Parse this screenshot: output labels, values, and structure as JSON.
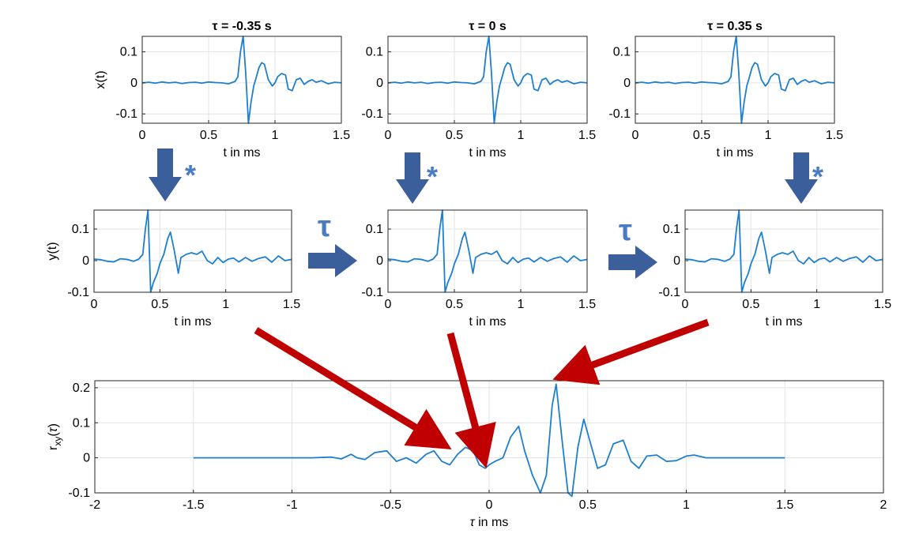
{
  "colors": {
    "trace": "#1f7fcf",
    "axis": "#262626",
    "grid": "#e3e3e3",
    "blue_arrow": "#3a5f9a",
    "blue_label": "#4a7cc4",
    "red_arrow": "#c00000"
  },
  "symbols": {
    "convolution": "*",
    "shift": "τ"
  },
  "chart_data": [
    {
      "id": "x1",
      "type": "line",
      "title": "τ = -0.35 s",
      "xlabel": "t in ms",
      "ylabel": "x(t)",
      "xlim": [
        0,
        1.5
      ],
      "ylim": [
        -0.13,
        0.15
      ],
      "grid": true,
      "xticks": [
        0,
        0.5,
        1,
        1.5
      ],
      "xtick_labels": [
        "0",
        "0.5",
        "1",
        "1.5"
      ],
      "yticks": [
        -0.1,
        0,
        0.1
      ],
      "ytick_labels": [
        "-0.1",
        "0",
        "0.1"
      ],
      "series": [
        {
          "x": [
            0,
            0.05,
            0.1,
            0.15,
            0.2,
            0.25,
            0.3,
            0.35,
            0.4,
            0.45,
            0.5,
            0.55,
            0.6,
            0.65,
            0.7,
            0.72,
            0.74,
            0.76,
            0.78,
            0.8,
            0.82,
            0.84,
            0.86,
            0.88,
            0.9,
            0.92,
            0.95,
            0.98,
            1.0,
            1.02,
            1.05,
            1.08,
            1.1,
            1.13,
            1.16,
            1.19,
            1.22,
            1.25,
            1.28,
            1.31,
            1.35,
            1.4,
            1.45,
            1.5
          ],
          "y": [
            0,
            0.002,
            -0.001,
            0.003,
            0,
            0.002,
            -0.002,
            0.001,
            0.002,
            -0.001,
            0.003,
            0.001,
            0,
            -0.003,
            0.005,
            0.02,
            0.1,
            0.15,
            0.03,
            -0.13,
            -0.06,
            -0.01,
            0.02,
            0.05,
            0.065,
            0.06,
            0.01,
            -0.01,
            0,
            0.02,
            0.03,
            0.025,
            -0.02,
            -0.025,
            0.01,
            0.015,
            -0.005,
            0.005,
            0.01,
            0.002,
            0.007,
            -0.003,
            0.002,
            0
          ]
        }
      ]
    },
    {
      "id": "x2",
      "type": "line",
      "title": "τ = 0 s",
      "xlabel": "t in ms",
      "ylabel": "",
      "xlim": [
        0,
        1.5
      ],
      "ylim": [
        -0.13,
        0.15
      ],
      "grid": true,
      "xticks": [
        0,
        0.5,
        1,
        1.5
      ],
      "xtick_labels": [
        "0",
        "0.5",
        "1",
        "1.5"
      ],
      "yticks": [
        -0.1,
        0,
        0.1
      ],
      "ytick_labels": [
        "-0.1",
        "0",
        "0.1"
      ],
      "series": [
        {
          "x": [
            0,
            0.05,
            0.1,
            0.15,
            0.2,
            0.25,
            0.3,
            0.35,
            0.4,
            0.45,
            0.5,
            0.55,
            0.6,
            0.65,
            0.7,
            0.72,
            0.74,
            0.76,
            0.78,
            0.8,
            0.82,
            0.84,
            0.86,
            0.88,
            0.9,
            0.92,
            0.95,
            0.98,
            1.0,
            1.02,
            1.05,
            1.08,
            1.1,
            1.13,
            1.16,
            1.19,
            1.22,
            1.25,
            1.28,
            1.31,
            1.35,
            1.4,
            1.45,
            1.5
          ],
          "y": [
            0,
            0.002,
            -0.001,
            0.003,
            0,
            0.002,
            -0.002,
            0.001,
            0.002,
            -0.001,
            0.003,
            0.001,
            0,
            -0.003,
            0.005,
            0.02,
            0.1,
            0.15,
            0.03,
            -0.13,
            -0.06,
            -0.01,
            0.02,
            0.05,
            0.065,
            0.06,
            0.01,
            -0.01,
            0,
            0.02,
            0.03,
            0.025,
            -0.02,
            -0.025,
            0.01,
            0.015,
            -0.005,
            0.005,
            0.01,
            0.002,
            0.007,
            -0.003,
            0.002,
            0
          ]
        }
      ]
    },
    {
      "id": "x3",
      "type": "line",
      "title": "τ = 0.35 s",
      "xlabel": "t in ms",
      "ylabel": "",
      "xlim": [
        0,
        1.5
      ],
      "ylim": [
        -0.13,
        0.15
      ],
      "grid": true,
      "xticks": [
        0,
        0.5,
        1,
        1.5
      ],
      "xtick_labels": [
        "0",
        "0.5",
        "1",
        "1.5"
      ],
      "yticks": [
        -0.1,
        0,
        0.1
      ],
      "ytick_labels": [
        "-0.1",
        "0",
        "0.1"
      ],
      "series": [
        {
          "x": [
            0,
            0.05,
            0.1,
            0.15,
            0.2,
            0.25,
            0.3,
            0.35,
            0.4,
            0.45,
            0.5,
            0.55,
            0.6,
            0.65,
            0.7,
            0.72,
            0.74,
            0.76,
            0.78,
            0.8,
            0.82,
            0.84,
            0.86,
            0.88,
            0.9,
            0.92,
            0.95,
            0.98,
            1.0,
            1.02,
            1.05,
            1.08,
            1.1,
            1.13,
            1.16,
            1.19,
            1.22,
            1.25,
            1.28,
            1.31,
            1.35,
            1.4,
            1.45,
            1.5
          ],
          "y": [
            0,
            0.002,
            -0.001,
            0.003,
            0,
            0.002,
            -0.002,
            0.001,
            0.002,
            -0.001,
            0.003,
            0.001,
            0,
            -0.003,
            0.005,
            0.02,
            0.1,
            0.15,
            0.03,
            -0.13,
            -0.06,
            -0.01,
            0.02,
            0.05,
            0.065,
            0.06,
            0.01,
            -0.01,
            0,
            0.02,
            0.03,
            0.025,
            -0.02,
            -0.025,
            0.01,
            0.015,
            -0.005,
            0.005,
            0.01,
            0.002,
            0.007,
            -0.003,
            0.002,
            0
          ]
        }
      ]
    },
    {
      "id": "y1",
      "type": "line",
      "title": "",
      "xlabel": "t in ms",
      "ylabel": "y(t)",
      "xlim": [
        0,
        1.5
      ],
      "ylim": [
        -0.1,
        0.16
      ],
      "grid": true,
      "xticks": [
        0,
        0.5,
        1,
        1.5
      ],
      "xtick_labels": [
        "0",
        "0.5",
        "1",
        "1.5"
      ],
      "yticks": [
        -0.1,
        0,
        0.1
      ],
      "ytick_labels": [
        "-0.1",
        "0",
        "0.1"
      ],
      "series": [
        {
          "x": [
            0,
            0.05,
            0.1,
            0.15,
            0.2,
            0.25,
            0.3,
            0.34,
            0.37,
            0.39,
            0.41,
            0.43,
            0.45,
            0.48,
            0.5,
            0.53,
            0.56,
            0.58,
            0.61,
            0.64,
            0.66,
            0.7,
            0.74,
            0.78,
            0.82,
            0.86,
            0.9,
            0.94,
            0.98,
            1.02,
            1.06,
            1.1,
            1.15,
            1.2,
            1.25,
            1.3,
            1.35,
            1.4,
            1.45,
            1.5
          ],
          "y": [
            0.005,
            0.003,
            -0.002,
            -0.004,
            0.006,
            0.004,
            -0.002,
            0.005,
            0.02,
            0.1,
            0.16,
            -0.1,
            -0.07,
            -0.04,
            -0.01,
            0.02,
            0.07,
            0.09,
            0.03,
            -0.04,
            0.01,
            0.02,
            0.025,
            0.02,
            0.03,
            0,
            -0.01,
            0.01,
            -0.006,
            0.005,
            0.008,
            -0.004,
            0.01,
            -0.002,
            0.007,
            0.012,
            -0.005,
            0.015,
            0,
            0.004
          ]
        }
      ]
    },
    {
      "id": "y2",
      "type": "line",
      "title": "",
      "xlabel": "t in ms",
      "ylabel": "",
      "xlim": [
        0,
        1.5
      ],
      "ylim": [
        -0.1,
        0.16
      ],
      "grid": true,
      "xticks": [
        0,
        0.5,
        1,
        1.5
      ],
      "xtick_labels": [
        "0",
        "0.5",
        "1",
        "1.5"
      ],
      "yticks": [
        -0.1,
        0,
        0.1
      ],
      "ytick_labels": [
        "-0.1",
        "0",
        "0.1"
      ],
      "series": [
        {
          "x": [
            0,
            0.05,
            0.1,
            0.15,
            0.2,
            0.25,
            0.3,
            0.34,
            0.37,
            0.39,
            0.41,
            0.43,
            0.45,
            0.48,
            0.5,
            0.53,
            0.56,
            0.58,
            0.61,
            0.64,
            0.66,
            0.7,
            0.74,
            0.78,
            0.82,
            0.86,
            0.9,
            0.94,
            0.98,
            1.02,
            1.06,
            1.1,
            1.15,
            1.2,
            1.25,
            1.3,
            1.35,
            1.4,
            1.45,
            1.5
          ],
          "y": [
            0.005,
            0.003,
            -0.002,
            -0.004,
            0.006,
            0.004,
            -0.002,
            0.005,
            0.02,
            0.1,
            0.16,
            -0.1,
            -0.07,
            -0.04,
            -0.01,
            0.02,
            0.07,
            0.09,
            0.03,
            -0.04,
            0.01,
            0.02,
            0.025,
            0.02,
            0.03,
            0,
            -0.01,
            0.01,
            -0.006,
            0.005,
            0.008,
            -0.004,
            0.01,
            -0.002,
            0.007,
            0.012,
            -0.005,
            0.015,
            0,
            0.004
          ]
        }
      ]
    },
    {
      "id": "y3",
      "type": "line",
      "title": "",
      "xlabel": "t in ms",
      "ylabel": "",
      "xlim": [
        0,
        1.5
      ],
      "ylim": [
        -0.1,
        0.16
      ],
      "grid": true,
      "xticks": [
        0,
        0.5,
        1,
        1.5
      ],
      "xtick_labels": [
        "0",
        "0.5",
        "1",
        "1.5"
      ],
      "yticks": [
        -0.1,
        0,
        0.1
      ],
      "ytick_labels": [
        "-0.1",
        "0",
        "0.1"
      ],
      "series": [
        {
          "x": [
            0,
            0.05,
            0.1,
            0.15,
            0.2,
            0.25,
            0.3,
            0.34,
            0.37,
            0.39,
            0.41,
            0.43,
            0.45,
            0.48,
            0.5,
            0.53,
            0.56,
            0.58,
            0.61,
            0.64,
            0.66,
            0.7,
            0.74,
            0.78,
            0.82,
            0.86,
            0.9,
            0.94,
            0.98,
            1.02,
            1.06,
            1.1,
            1.15,
            1.2,
            1.25,
            1.3,
            1.35,
            1.4,
            1.45,
            1.5
          ],
          "y": [
            0.005,
            0.003,
            -0.002,
            -0.004,
            0.006,
            0.004,
            -0.002,
            0.005,
            0.02,
            0.1,
            0.16,
            -0.1,
            -0.07,
            -0.04,
            -0.01,
            0.02,
            0.07,
            0.09,
            0.03,
            -0.04,
            0.01,
            0.02,
            0.025,
            0.02,
            0.03,
            0,
            -0.01,
            0.01,
            -0.006,
            0.005,
            0.008,
            -0.004,
            0.01,
            -0.002,
            0.007,
            0.012,
            -0.005,
            0.015,
            0,
            0.004
          ]
        }
      ]
    },
    {
      "id": "rxy",
      "type": "line",
      "title": "",
      "xlabel": "τ in ms",
      "ylabel": "r_xy(τ)",
      "xlim": [
        -2,
        2
      ],
      "ylim": [
        -0.1,
        0.22
      ],
      "grid": true,
      "xticks": [
        -2,
        -1.5,
        -1,
        -0.5,
        0,
        0.5,
        1,
        1.5,
        2
      ],
      "xtick_labels": [
        "-2",
        "-1.5",
        "-1",
        "-0.5",
        "0",
        "0.5",
        "1",
        "1.5",
        "2"
      ],
      "yticks": [
        -0.1,
        0,
        0.1,
        0.2
      ],
      "ytick_labels": [
        "-0.1",
        "0",
        "0.1",
        "0.2"
      ],
      "series": [
        {
          "x": [
            -1.5,
            -1.2,
            -0.9,
            -0.8,
            -0.75,
            -0.7,
            -0.67,
            -0.63,
            -0.58,
            -0.52,
            -0.47,
            -0.42,
            -0.37,
            -0.32,
            -0.28,
            -0.24,
            -0.2,
            -0.16,
            -0.12,
            -0.08,
            -0.05,
            -0.02,
            0.0,
            0.03,
            0.07,
            0.11,
            0.15,
            0.18,
            0.22,
            0.26,
            0.29,
            0.32,
            0.34,
            0.37,
            0.4,
            0.42,
            0.45,
            0.48,
            0.51,
            0.55,
            0.59,
            0.63,
            0.68,
            0.72,
            0.76,
            0.8,
            0.85,
            0.9,
            0.95,
            1.0,
            1.04,
            1.1,
            1.2,
            1.3,
            1.5
          ],
          "y": [
            0,
            0,
            0,
            0.002,
            -0.003,
            0.01,
            0,
            -0.005,
            0.015,
            0.02,
            -0.01,
            0,
            -0.015,
            0.01,
            0.02,
            -0.01,
            -0.02,
            0.01,
            0.03,
            0.02,
            -0.02,
            -0.03,
            -0.02,
            -0.01,
            0.0,
            0.06,
            0.09,
            0.02,
            -0.05,
            -0.1,
            -0.05,
            0.15,
            0.21,
            0.05,
            -0.1,
            -0.11,
            0.03,
            0.11,
            0.05,
            -0.03,
            -0.02,
            0.04,
            0.05,
            -0.01,
            -0.03,
            0.005,
            0.008,
            -0.01,
            -0.008,
            0.005,
            0.008,
            0,
            0,
            0,
            0
          ]
        }
      ]
    }
  ]
}
